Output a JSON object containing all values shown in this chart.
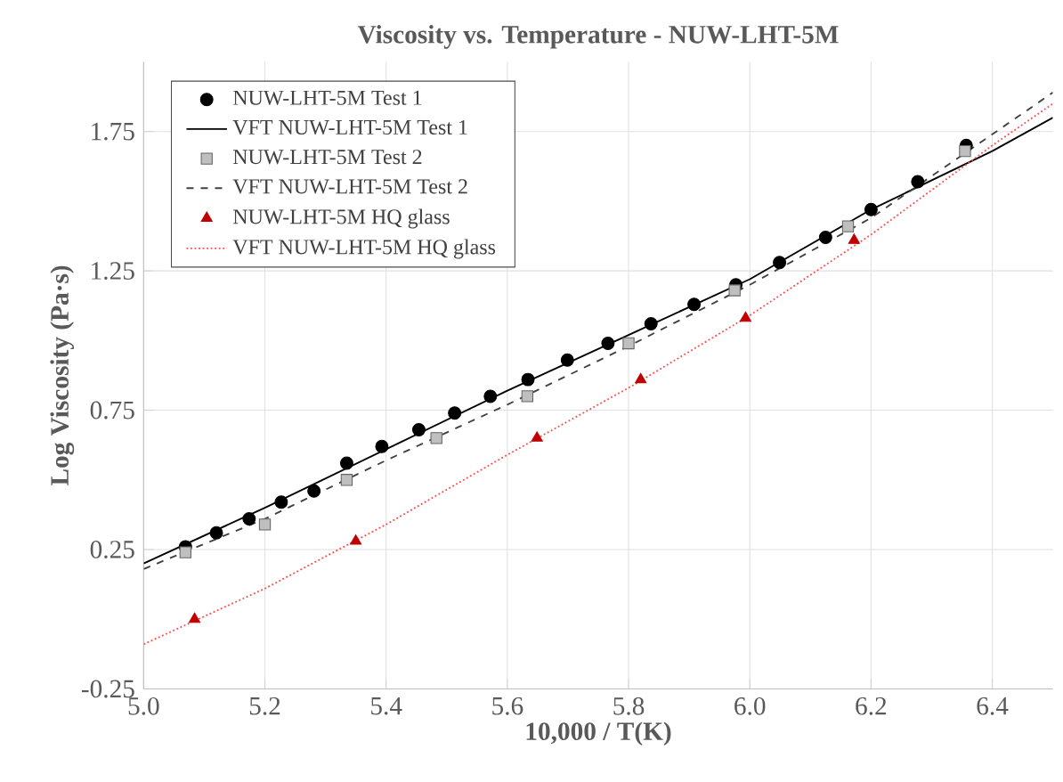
{
  "chart_data": {
    "type": "scatter",
    "title": "Viscosity vs. Temperature - NUW-LHT-5M",
    "xlabel": "10,000 / T(K)",
    "ylabel": "Log Viscosity (Pa·s)",
    "xlim": [
      5.0,
      6.5
    ],
    "ylim": [
      -0.25,
      2.0
    ],
    "xticks": [
      {
        "value": 5.0,
        "label": "5.0"
      },
      {
        "value": 5.2,
        "label": "5.2"
      },
      {
        "value": 5.4,
        "label": "5.4"
      },
      {
        "value": 5.6,
        "label": "5.6"
      },
      {
        "value": 5.8,
        "label": "5.8"
      },
      {
        "value": 6.0,
        "label": "6.0"
      },
      {
        "value": 6.2,
        "label": "6.2"
      },
      {
        "value": 6.4,
        "label": "6.4"
      }
    ],
    "yticks": [
      -0.25,
      0.25,
      0.75,
      1.25,
      1.75
    ],
    "grid": true,
    "legend": "top left",
    "series": [
      {
        "name": "NUW-LHT-5M Test 1",
        "marker": "circle",
        "color": "#000000",
        "x": [
          5.069,
          5.12,
          5.174,
          5.227,
          5.281,
          5.335,
          5.393,
          5.454,
          5.513,
          5.572,
          5.634,
          5.699,
          5.766,
          5.837,
          5.908,
          5.977,
          6.049,
          6.125,
          6.2,
          6.277,
          6.357
        ],
        "values": [
          0.26,
          0.31,
          0.36,
          0.42,
          0.46,
          0.56,
          0.62,
          0.68,
          0.74,
          0.8,
          0.86,
          0.93,
          0.99,
          1.06,
          1.13,
          1.2,
          1.28,
          1.37,
          1.47,
          1.57,
          1.7
        ]
      },
      {
        "name": "VFT NUW-LHT-5M Test 1",
        "type": "line",
        "line_style": "solid",
        "color": "#000000",
        "x": [
          5.0,
          5.2,
          5.4,
          5.6,
          5.8,
          6.0,
          6.2,
          6.4,
          6.5
        ],
        "values": [
          0.2,
          0.4,
          0.61,
          0.82,
          1.02,
          1.22,
          1.47,
          1.68,
          1.8
        ]
      },
      {
        "name": "NUW-LHT-5M Test 2",
        "marker": "square",
        "color": "#bfbfbf",
        "x": [
          5.069,
          5.2,
          5.335,
          5.483,
          5.633,
          5.8,
          5.975,
          6.162,
          6.355
        ],
        "values": [
          0.24,
          0.34,
          0.5,
          0.65,
          0.8,
          0.99,
          1.18,
          1.41,
          1.68
        ]
      },
      {
        "name": "VFT NUW-LHT-5M Test 2",
        "type": "line",
        "line_style": "dashed",
        "color": "#404040",
        "x": [
          5.0,
          5.2,
          5.4,
          5.6,
          5.8,
          6.0,
          6.2,
          6.4,
          6.5
        ],
        "values": [
          0.18,
          0.36,
          0.57,
          0.77,
          0.98,
          1.2,
          1.44,
          1.74,
          1.89
        ]
      },
      {
        "name": "NUW-LHT-5M HQ glass",
        "marker": "triangle",
        "color": "#c00000",
        "x": [
          5.084,
          5.35,
          5.649,
          5.82,
          5.993,
          6.172
        ],
        "values": [
          0.0,
          0.28,
          0.65,
          0.86,
          1.08,
          1.36
        ]
      },
      {
        "name": "VFT NUW-LHT-5M HQ glass",
        "type": "line",
        "line_style": "dotted",
        "color": "#ff5050",
        "x": [
          5.0,
          5.2,
          5.4,
          5.6,
          5.8,
          6.0,
          6.2,
          6.4,
          6.5
        ],
        "values": [
          -0.09,
          0.11,
          0.34,
          0.59,
          0.83,
          1.09,
          1.38,
          1.7,
          1.85
        ]
      }
    ]
  }
}
